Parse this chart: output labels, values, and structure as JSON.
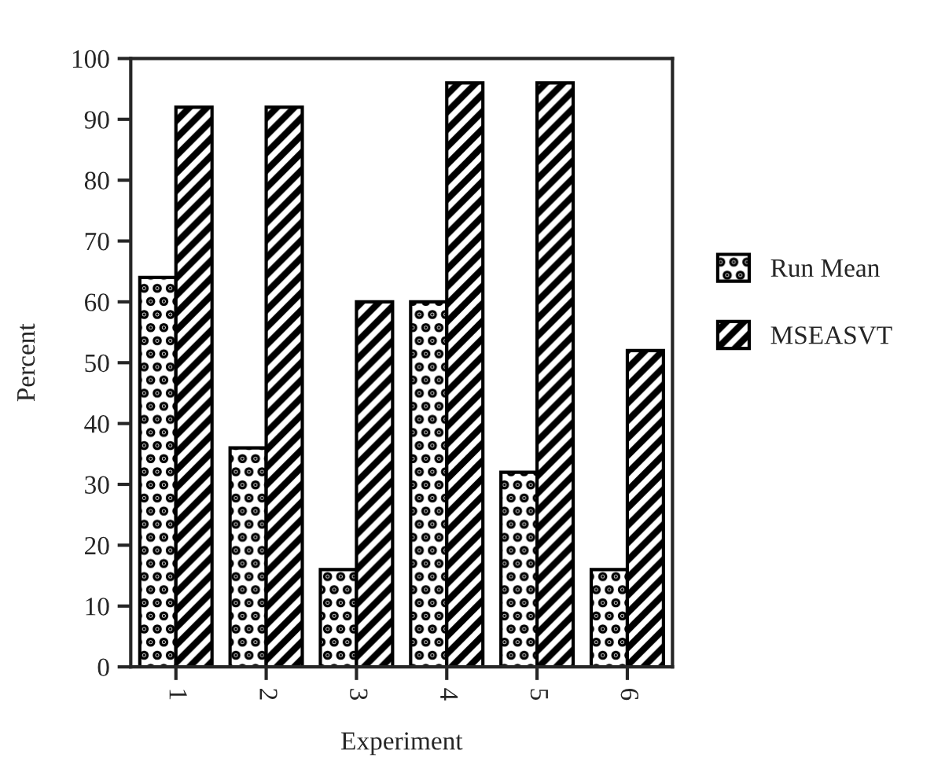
{
  "chart_data": {
    "type": "bar",
    "xlabel": "Experiment",
    "ylabel": "Percent",
    "categories": [
      "1",
      "2",
      "3",
      "4",
      "5",
      "6"
    ],
    "series": [
      {
        "name": "Run Mean",
        "color": "#000000",
        "values": [
          64,
          36,
          16,
          60,
          32,
          16
        ]
      },
      {
        "name": "MSEASVT",
        "color": "#000000",
        "values": [
          92,
          92,
          60,
          96,
          96,
          52
        ]
      }
    ],
    "ylim": [
      0,
      100
    ],
    "yticks": [
      0,
      10,
      20,
      30,
      40,
      50,
      60,
      70,
      80,
      90,
      100
    ],
    "grid": false,
    "legend": "right"
  }
}
